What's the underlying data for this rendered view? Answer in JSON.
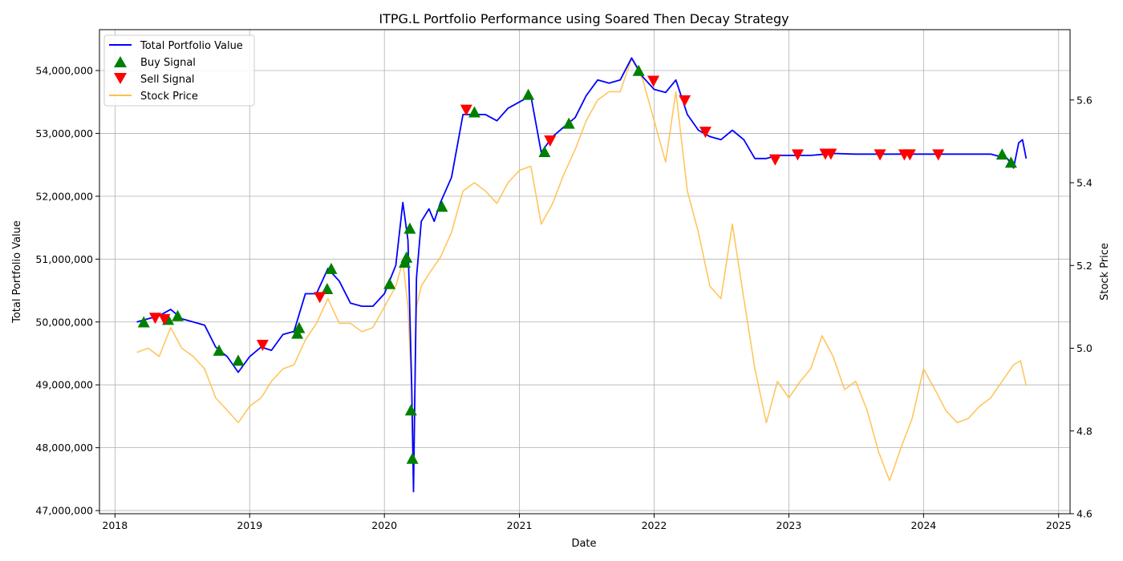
{
  "chart_data": {
    "type": "line",
    "title": "ITPG.L Portfolio Performance using Soared Then Decay Strategy",
    "xlabel": "Date",
    "ylabel_left": "Total Portfolio Value",
    "ylabel_right": "Stock Price",
    "xlim": [
      "2017-11-20",
      "2025-02-01"
    ],
    "ylim_left": [
      46950000,
      54650000
    ],
    "ylim_right": [
      4.6,
      5.77
    ],
    "x_ticks": [
      "2018",
      "2019",
      "2020",
      "2021",
      "2022",
      "2023",
      "2024",
      "2025"
    ],
    "y_ticks_left": [
      "47,000,000",
      "48,000,000",
      "49,000,000",
      "50,000,000",
      "51,000,000",
      "52,000,000",
      "53,000,000",
      "54,000,000"
    ],
    "y_ticks_left_values": [
      47000000,
      48000000,
      49000000,
      50000000,
      51000000,
      52000000,
      53000000,
      54000000
    ],
    "y_ticks_right": [
      "4.6",
      "4.8",
      "5.0",
      "5.2",
      "5.4",
      "5.6"
    ],
    "y_ticks_right_values": [
      4.6,
      4.8,
      5.0,
      5.2,
      5.4,
      5.6
    ],
    "grid": true,
    "legend_position": "top-left",
    "legend": [
      {
        "label": "Total Portfolio Value",
        "kind": "line",
        "color": "#0000ff"
      },
      {
        "label": "Buy Signal",
        "kind": "triangle-up",
        "color": "#008000"
      },
      {
        "label": "Sell Signal",
        "kind": "triangle-down",
        "color": "#ff0000"
      },
      {
        "label": "Stock Price",
        "kind": "line",
        "color": "#ffc04d"
      }
    ],
    "series": [
      {
        "name": "Total Portfolio Value",
        "axis": "left",
        "color": "#0000ff",
        "points": [
          [
            "2018-03-01",
            50000000
          ],
          [
            "2018-04-01",
            50050000
          ],
          [
            "2018-05-01",
            50100000
          ],
          [
            "2018-06-01",
            50200000
          ],
          [
            "2018-07-01",
            50050000
          ],
          [
            "2018-08-01",
            50000000
          ],
          [
            "2018-09-01",
            49950000
          ],
          [
            "2018-10-01",
            49600000
          ],
          [
            "2018-11-01",
            49450000
          ],
          [
            "2018-12-01",
            49200000
          ],
          [
            "2019-01-01",
            49450000
          ],
          [
            "2019-02-01",
            49600000
          ],
          [
            "2019-03-01",
            49550000
          ],
          [
            "2019-04-01",
            49800000
          ],
          [
            "2019-05-01",
            49850000
          ],
          [
            "2019-06-01",
            50450000
          ],
          [
            "2019-07-01",
            50450000
          ],
          [
            "2019-08-01",
            50850000
          ],
          [
            "2019-09-01",
            50650000
          ],
          [
            "2019-10-01",
            50300000
          ],
          [
            "2019-11-01",
            50250000
          ],
          [
            "2019-12-01",
            50250000
          ],
          [
            "2020-01-01",
            50450000
          ],
          [
            "2020-02-01",
            50900000
          ],
          [
            "2020-02-20",
            51900000
          ],
          [
            "2020-03-05",
            51300000
          ],
          [
            "2020-03-15",
            49000000
          ],
          [
            "2020-03-20",
            47300000
          ],
          [
            "2020-03-28",
            50700000
          ],
          [
            "2020-04-10",
            51600000
          ],
          [
            "2020-05-01",
            51800000
          ],
          [
            "2020-05-15",
            51600000
          ],
          [
            "2020-06-01",
            51900000
          ],
          [
            "2020-07-01",
            52300000
          ],
          [
            "2020-08-01",
            53300000
          ],
          [
            "2020-09-01",
            53300000
          ],
          [
            "2020-10-01",
            53300000
          ],
          [
            "2020-11-01",
            53200000
          ],
          [
            "2020-12-01",
            53400000
          ],
          [
            "2021-01-01",
            53500000
          ],
          [
            "2021-02-01",
            53600000
          ],
          [
            "2021-03-01",
            52700000
          ],
          [
            "2021-04-01",
            52950000
          ],
          [
            "2021-05-01",
            53100000
          ],
          [
            "2021-06-01",
            53250000
          ],
          [
            "2021-07-01",
            53600000
          ],
          [
            "2021-08-01",
            53850000
          ],
          [
            "2021-09-01",
            53800000
          ],
          [
            "2021-10-01",
            53850000
          ],
          [
            "2021-11-01",
            54200000
          ],
          [
            "2021-12-01",
            53900000
          ],
          [
            "2022-01-01",
            53700000
          ],
          [
            "2022-02-01",
            53650000
          ],
          [
            "2022-03-01",
            53850000
          ],
          [
            "2022-04-01",
            53300000
          ],
          [
            "2022-05-01",
            53050000
          ],
          [
            "2022-06-01",
            52950000
          ],
          [
            "2022-07-01",
            52900000
          ],
          [
            "2022-08-01",
            53050000
          ],
          [
            "2022-09-01",
            52900000
          ],
          [
            "2022-10-01",
            52600000
          ],
          [
            "2022-11-01",
            52600000
          ],
          [
            "2022-12-01",
            52650000
          ],
          [
            "2023-01-01",
            52650000
          ],
          [
            "2023-03-01",
            52650000
          ],
          [
            "2023-05-01",
            52680000
          ],
          [
            "2023-07-01",
            52670000
          ],
          [
            "2023-10-01",
            52670000
          ],
          [
            "2024-01-01",
            52670000
          ],
          [
            "2024-04-01",
            52670000
          ],
          [
            "2024-07-01",
            52670000
          ],
          [
            "2024-08-15",
            52600000
          ],
          [
            "2024-09-01",
            52450000
          ],
          [
            "2024-09-15",
            52850000
          ],
          [
            "2024-09-25",
            52900000
          ],
          [
            "2024-10-05",
            52600000
          ]
        ]
      },
      {
        "name": "Stock Price",
        "axis": "right",
        "color": "#ffc04d",
        "points": [
          [
            "2018-03-01",
            4.99
          ],
          [
            "2018-04-01",
            5.0
          ],
          [
            "2018-05-01",
            4.98
          ],
          [
            "2018-06-01",
            5.05
          ],
          [
            "2018-07-01",
            5.0
          ],
          [
            "2018-08-01",
            4.98
          ],
          [
            "2018-09-01",
            4.95
          ],
          [
            "2018-10-01",
            4.88
          ],
          [
            "2018-11-01",
            4.85
          ],
          [
            "2018-12-01",
            4.82
          ],
          [
            "2019-01-01",
            4.86
          ],
          [
            "2019-02-01",
            4.88
          ],
          [
            "2019-03-01",
            4.92
          ],
          [
            "2019-04-01",
            4.95
          ],
          [
            "2019-05-01",
            4.96
          ],
          [
            "2019-06-01",
            5.02
          ],
          [
            "2019-07-01",
            5.06
          ],
          [
            "2019-08-01",
            5.12
          ],
          [
            "2019-09-01",
            5.06
          ],
          [
            "2019-10-01",
            5.06
          ],
          [
            "2019-11-01",
            5.04
          ],
          [
            "2019-12-01",
            5.05
          ],
          [
            "2020-01-01",
            5.1
          ],
          [
            "2020-02-01",
            5.15
          ],
          [
            "2020-02-20",
            5.21
          ],
          [
            "2020-03-05",
            5.1
          ],
          [
            "2020-03-15",
            4.9
          ],
          [
            "2020-03-20",
            4.74
          ],
          [
            "2020-03-28",
            5.1
          ],
          [
            "2020-04-10",
            5.15
          ],
          [
            "2020-05-01",
            5.18
          ],
          [
            "2020-06-01",
            5.22
          ],
          [
            "2020-07-01",
            5.28
          ],
          [
            "2020-08-01",
            5.38
          ],
          [
            "2020-09-01",
            5.4
          ],
          [
            "2020-10-01",
            5.38
          ],
          [
            "2020-11-01",
            5.35
          ],
          [
            "2020-12-01",
            5.4
          ],
          [
            "2021-01-01",
            5.43
          ],
          [
            "2021-02-01",
            5.44
          ],
          [
            "2021-03-01",
            5.3
          ],
          [
            "2021-04-01",
            5.35
          ],
          [
            "2021-05-01",
            5.42
          ],
          [
            "2021-06-01",
            5.48
          ],
          [
            "2021-07-01",
            5.55
          ],
          [
            "2021-08-01",
            5.6
          ],
          [
            "2021-09-01",
            5.62
          ],
          [
            "2021-10-01",
            5.62
          ],
          [
            "2021-11-01",
            5.7
          ],
          [
            "2021-12-01",
            5.65
          ],
          [
            "2022-01-01",
            5.55
          ],
          [
            "2022-02-01",
            5.45
          ],
          [
            "2022-03-01",
            5.62
          ],
          [
            "2022-04-01",
            5.38
          ],
          [
            "2022-05-01",
            5.28
          ],
          [
            "2022-06-01",
            5.15
          ],
          [
            "2022-07-01",
            5.12
          ],
          [
            "2022-08-01",
            5.3
          ],
          [
            "2022-09-01",
            5.12
          ],
          [
            "2022-10-01",
            4.95
          ],
          [
            "2022-11-01",
            4.82
          ],
          [
            "2022-12-01",
            4.92
          ],
          [
            "2023-01-01",
            4.88
          ],
          [
            "2023-02-01",
            4.92
          ],
          [
            "2023-03-01",
            4.95
          ],
          [
            "2023-04-01",
            5.03
          ],
          [
            "2023-05-01",
            4.98
          ],
          [
            "2023-06-01",
            4.9
          ],
          [
            "2023-07-01",
            4.92
          ],
          [
            "2023-08-01",
            4.85
          ],
          [
            "2023-09-01",
            4.75
          ],
          [
            "2023-10-01",
            4.68
          ],
          [
            "2023-11-01",
            4.76
          ],
          [
            "2023-12-01",
            4.83
          ],
          [
            "2024-01-01",
            4.95
          ],
          [
            "2024-02-01",
            4.9
          ],
          [
            "2024-03-01",
            4.85
          ],
          [
            "2024-04-01",
            4.82
          ],
          [
            "2024-05-01",
            4.83
          ],
          [
            "2024-06-01",
            4.86
          ],
          [
            "2024-07-01",
            4.88
          ],
          [
            "2024-08-01",
            4.92
          ],
          [
            "2024-09-01",
            4.96
          ],
          [
            "2024-09-20",
            4.97
          ],
          [
            "2024-10-05",
            4.91
          ]
        ]
      }
    ],
    "buy_signals": [
      [
        "2018-03-20",
        49990000
      ],
      [
        "2018-05-25",
        50030000
      ],
      [
        "2018-06-20",
        50090000
      ],
      [
        "2018-10-10",
        49540000
      ],
      [
        "2018-12-01",
        49380000
      ],
      [
        "2019-05-15",
        49900000
      ],
      [
        "2019-05-10",
        49810000
      ],
      [
        "2019-07-30",
        50520000
      ],
      [
        "2019-08-10",
        50840000
      ],
      [
        "2020-01-15",
        50600000
      ],
      [
        "2020-02-25",
        50940000
      ],
      [
        "2020-03-01",
        51020000
      ],
      [
        "2020-03-10",
        51480000
      ],
      [
        "2020-03-13",
        48590000
      ],
      [
        "2020-03-17",
        47820000
      ],
      [
        "2020-06-05",
        51830000
      ],
      [
        "2020-09-01",
        53330000
      ],
      [
        "2021-01-25",
        53610000
      ],
      [
        "2021-03-10",
        52700000
      ],
      [
        "2021-05-15",
        53150000
      ],
      [
        "2021-11-20",
        53990000
      ],
      [
        "2024-08-01",
        52660000
      ],
      [
        "2024-08-25",
        52530000
      ]
    ],
    "sell_signals": [
      [
        "2018-04-20",
        50070000
      ],
      [
        "2018-05-15",
        50050000
      ],
      [
        "2019-02-05",
        49640000
      ],
      [
        "2019-07-10",
        50400000
      ],
      [
        "2020-08-10",
        53380000
      ],
      [
        "2021-03-25",
        52890000
      ],
      [
        "2021-12-30",
        53840000
      ],
      [
        "2022-03-25",
        53530000
      ],
      [
        "2022-05-20",
        53030000
      ],
      [
        "2022-11-25",
        52590000
      ],
      [
        "2023-01-25",
        52670000
      ],
      [
        "2023-04-10",
        52680000
      ],
      [
        "2023-04-25",
        52680000
      ],
      [
        "2023-09-05",
        52670000
      ],
      [
        "2023-11-10",
        52670000
      ],
      [
        "2023-11-25",
        52670000
      ],
      [
        "2024-02-10",
        52670000
      ]
    ]
  }
}
